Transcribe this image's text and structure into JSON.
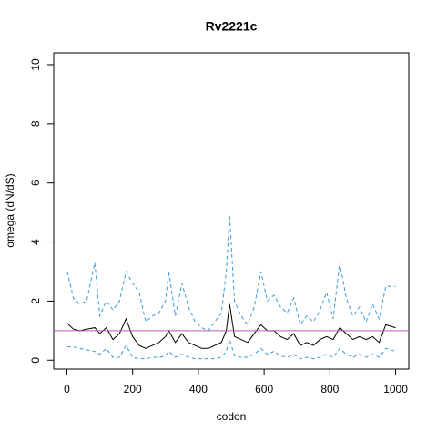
{
  "chart_data": {
    "type": "line",
    "title": "Rv2221c",
    "xlabel": "codon",
    "ylabel": "omega (dN/dS)",
    "x": [
      1,
      20,
      40,
      60,
      85,
      100,
      120,
      140,
      160,
      180,
      200,
      220,
      240,
      260,
      280,
      300,
      310,
      330,
      350,
      370,
      390,
      410,
      430,
      450,
      470,
      485,
      495,
      510,
      530,
      550,
      570,
      590,
      610,
      630,
      650,
      670,
      690,
      710,
      730,
      750,
      770,
      790,
      810,
      830,
      850,
      870,
      890,
      910,
      930,
      950,
      970,
      1000
    ],
    "series": [
      {
        "color": "#3a9ad9",
        "dashed": true,
        "values": [
          3.0,
          2.1,
          1.9,
          2.0,
          3.3,
          1.5,
          2.0,
          1.7,
          2.0,
          3.0,
          2.6,
          2.3,
          1.3,
          1.5,
          1.6,
          2.0,
          3.0,
          1.5,
          2.6,
          1.8,
          1.3,
          1.1,
          1.0,
          1.3,
          1.6,
          3.0,
          4.9,
          2.0,
          1.5,
          1.2,
          1.8,
          3.0,
          2.0,
          2.2,
          1.8,
          1.6,
          2.1,
          1.2,
          1.5,
          1.3,
          1.7,
          2.3,
          1.4,
          3.3,
          2.1,
          1.5,
          1.8,
          1.3,
          1.9,
          1.4,
          2.5,
          2.5
        ]
      },
      {
        "color": "#000000",
        "dashed": false,
        "values": [
          1.25,
          1.05,
          1.0,
          1.05,
          1.1,
          0.9,
          1.1,
          0.7,
          0.9,
          1.4,
          0.8,
          0.5,
          0.4,
          0.5,
          0.6,
          0.8,
          1.0,
          0.6,
          0.9,
          0.6,
          0.5,
          0.4,
          0.4,
          0.5,
          0.6,
          1.0,
          1.9,
          0.8,
          0.7,
          0.6,
          0.9,
          1.2,
          1.0,
          1.0,
          0.8,
          0.7,
          0.9,
          0.5,
          0.6,
          0.5,
          0.7,
          0.8,
          0.7,
          1.1,
          0.9,
          0.7,
          0.8,
          0.7,
          0.8,
          0.6,
          1.2,
          1.1
        ]
      },
      {
        "color": "#3a9ad9",
        "dashed": true,
        "values": [
          0.45,
          0.45,
          0.4,
          0.35,
          0.3,
          0.2,
          0.4,
          0.1,
          0.1,
          0.5,
          0.1,
          0.05,
          0.05,
          0.1,
          0.1,
          0.15,
          0.3,
          0.1,
          0.2,
          0.1,
          0.05,
          0.05,
          0.05,
          0.05,
          0.1,
          0.3,
          0.7,
          0.15,
          0.1,
          0.1,
          0.2,
          0.4,
          0.2,
          0.3,
          0.15,
          0.1,
          0.2,
          0.05,
          0.1,
          0.05,
          0.1,
          0.2,
          0.1,
          0.4,
          0.2,
          0.1,
          0.2,
          0.1,
          0.2,
          0.1,
          0.4,
          0.3
        ]
      }
    ],
    "hline": {
      "value": 1,
      "color": "#b05fb0"
    },
    "xlim": [
      -40,
      1040
    ],
    "xticks": [
      0,
      200,
      400,
      600,
      800,
      1000
    ],
    "ylim": [
      -0.3,
      10.4
    ],
    "yticks": [
      0,
      2,
      4,
      6,
      8,
      10
    ]
  }
}
